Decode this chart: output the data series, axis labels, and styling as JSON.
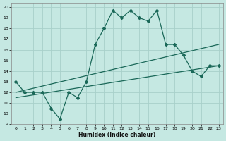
{
  "xlabel": "Humidex (Indice chaleur)",
  "background_color": "#c5e8e2",
  "grid_color": "#a8d0ca",
  "line_color": "#1a6858",
  "xlim": [
    -0.5,
    23.5
  ],
  "ylim": [
    9,
    20.4
  ],
  "xticks": [
    0,
    1,
    2,
    3,
    4,
    5,
    6,
    7,
    8,
    9,
    10,
    11,
    12,
    13,
    14,
    15,
    16,
    17,
    18,
    19,
    20,
    21,
    22,
    23
  ],
  "yticks": [
    9,
    10,
    11,
    12,
    13,
    14,
    15,
    16,
    17,
    18,
    19,
    20
  ],
  "line1_x": [
    0,
    1,
    2,
    3,
    4,
    5,
    6,
    7,
    8,
    9,
    10,
    11,
    12,
    13,
    14,
    15,
    16,
    17,
    18,
    19,
    20,
    21,
    22,
    23
  ],
  "line1_y": [
    13,
    12,
    12,
    12,
    10.5,
    9.5,
    12,
    11.5,
    13,
    16.5,
    18,
    19.7,
    19,
    19.7,
    19,
    18.7,
    19.7,
    16.5,
    16.5,
    15.5,
    14,
    13.5,
    14.5,
    14.5
  ],
  "line2_x": [
    0,
    23
  ],
  "line2_y": [
    12.0,
    16.5
  ],
  "line3_x": [
    0,
    23
  ],
  "line3_y": [
    11.5,
    14.5
  ]
}
